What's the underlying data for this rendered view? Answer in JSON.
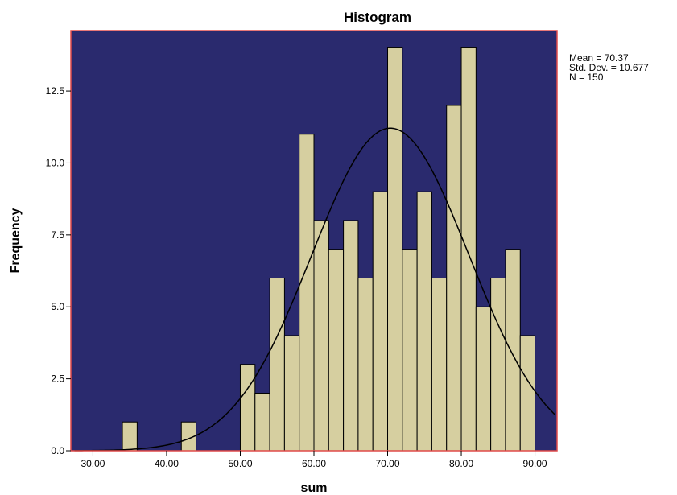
{
  "chart_data": {
    "type": "bar",
    "subtype": "histogram",
    "title": "Histogram",
    "xlabel": "sum",
    "ylabel": "Frequency",
    "xlim": [
      27,
      93
    ],
    "ylim": [
      0,
      14.6
    ],
    "x_ticks": [
      30,
      40,
      50,
      60,
      70,
      80,
      90
    ],
    "x_tick_labels": [
      "30.00",
      "40.00",
      "50.00",
      "60.00",
      "70.00",
      "80.00",
      "90.00"
    ],
    "y_ticks": [
      0,
      2.5,
      5,
      7.5,
      10,
      12.5
    ],
    "y_tick_labels": [
      "0.0",
      "2.5",
      "5.0",
      "7.5",
      "10.0",
      "12.5"
    ],
    "bin_width": 2,
    "bins": [
      {
        "start": 34,
        "end": 36,
        "count": 1
      },
      {
        "start": 42,
        "end": 44,
        "count": 1
      },
      {
        "start": 50,
        "end": 52,
        "count": 3
      },
      {
        "start": 52,
        "end": 54,
        "count": 2
      },
      {
        "start": 54,
        "end": 56,
        "count": 6
      },
      {
        "start": 56,
        "end": 58,
        "count": 4
      },
      {
        "start": 58,
        "end": 60,
        "count": 11
      },
      {
        "start": 60,
        "end": 62,
        "count": 8
      },
      {
        "start": 62,
        "end": 64,
        "count": 7
      },
      {
        "start": 64,
        "end": 66,
        "count": 8
      },
      {
        "start": 66,
        "end": 68,
        "count": 6
      },
      {
        "start": 68,
        "end": 70,
        "count": 9
      },
      {
        "start": 70,
        "end": 72,
        "count": 14
      },
      {
        "start": 72,
        "end": 74,
        "count": 7
      },
      {
        "start": 74,
        "end": 76,
        "count": 9
      },
      {
        "start": 76,
        "end": 78,
        "count": 6
      },
      {
        "start": 78,
        "end": 80,
        "count": 12
      },
      {
        "start": 80,
        "end": 82,
        "count": 14
      },
      {
        "start": 82,
        "end": 84,
        "count": 5
      },
      {
        "start": 84,
        "end": 86,
        "count": 6
      },
      {
        "start": 86,
        "end": 88,
        "count": 7
      },
      {
        "start": 88,
        "end": 90,
        "count": 4
      }
    ],
    "normal_curve": {
      "mean": 70.37,
      "std_dev": 10.677,
      "n": 150
    },
    "stats_legend": [
      "Mean = 70.37",
      "Std. Dev. = 10.677",
      "N = 150"
    ],
    "colors": {
      "plot_background": "#2a2a6e",
      "plot_border": "#e04a4a",
      "bar_fill": "#d6cfa0",
      "bar_stroke": "#000000",
      "curve": "#000000"
    },
    "grid": false
  }
}
